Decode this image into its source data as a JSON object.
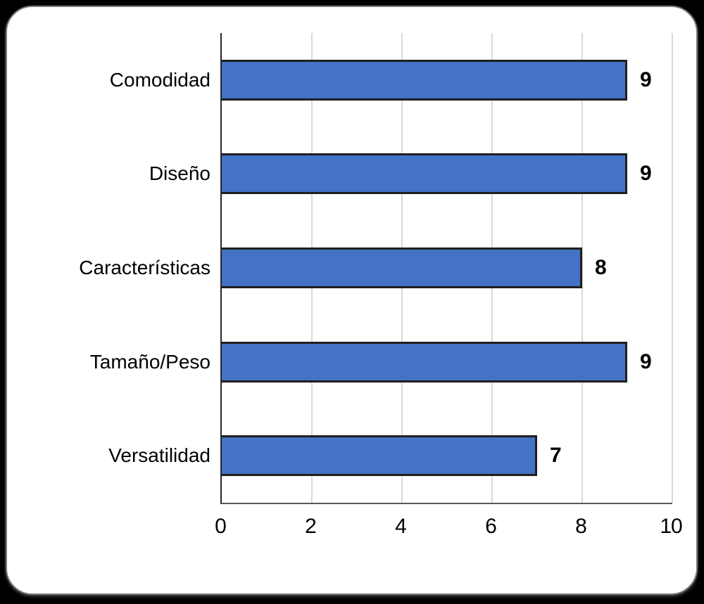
{
  "chart_data": {
    "type": "bar",
    "orientation": "horizontal",
    "title": "",
    "xlabel": "",
    "ylabel": "",
    "categories": [
      "Comodidad",
      "Diseño",
      "Características",
      "Tamaño/Peso",
      "Versatilidad"
    ],
    "values": [
      9,
      9,
      8,
      9,
      7
    ],
    "data_labels_shown": true,
    "xlim": [
      0,
      10
    ],
    "x_ticks": [
      0,
      2,
      4,
      6,
      8,
      10
    ],
    "grid": "vertical-major-only",
    "legend": "none"
  },
  "colors": {
    "page_background": "#000000",
    "card_background": "#ffffff",
    "card_border": "#7a7a7a",
    "bar_fill": "#4472c4",
    "bar_border": "#1f1f1f",
    "gridline": "#d9d9d9",
    "y_axis_line": "#262626",
    "x_axis_line": "#595959",
    "label_text": "#000000"
  }
}
